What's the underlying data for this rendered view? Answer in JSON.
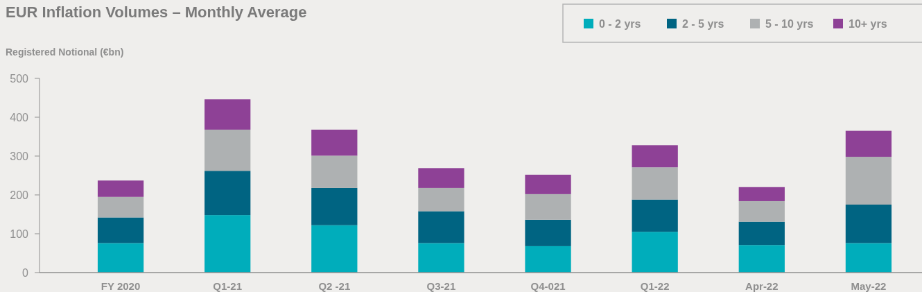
{
  "chart_data": {
    "type": "bar",
    "title": "EUR Inflation Volumes – Monthly Average",
    "ylabel": "Registered Notional (€bn)",
    "categories": [
      "FY 2020",
      "Q1-21",
      "Q2 -21",
      "Q3-21",
      "Q4-021",
      "Q1-22",
      "Apr-22",
      "May-22"
    ],
    "stacked": true,
    "series": [
      {
        "name": "0 - 2 yrs",
        "color": "#00adbb",
        "values": [
          76,
          148,
          122,
          76,
          68,
          105,
          71,
          76
        ]
      },
      {
        "name": "2 - 5 yrs",
        "color": "#006482",
        "values": [
          66,
          114,
          96,
          82,
          68,
          83,
          60,
          99
        ]
      },
      {
        "name": "5 - 10 yrs",
        "color": "#aeb1b2",
        "values": [
          53,
          106,
          83,
          60,
          66,
          83,
          53,
          123
        ]
      },
      {
        "name": "10+ yrs",
        "color": "#8e4196",
        "values": [
          42,
          78,
          67,
          51,
          50,
          57,
          36,
          67
        ]
      }
    ],
    "ylim": [
      0,
      500
    ],
    "yticks": [
      0,
      100,
      200,
      300,
      400,
      500
    ],
    "grid": false,
    "legend": "top right"
  }
}
